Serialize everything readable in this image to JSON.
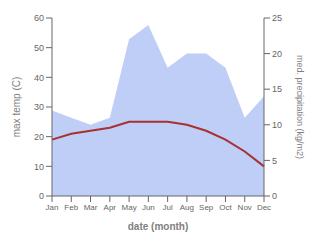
{
  "chart_data": {
    "type": "line",
    "categories": [
      "Jan",
      "Feb",
      "Mar",
      "Apr",
      "May",
      "Jun",
      "Jul",
      "Aug",
      "Sep",
      "Oct",
      "Nov",
      "Dec"
    ],
    "series": [
      {
        "type": "area",
        "axis": "y2",
        "color": "#b3c6f5",
        "values": [
          12,
          11,
          10,
          11,
          22,
          24,
          18,
          20,
          20,
          18,
          11,
          14
        ]
      },
      {
        "type": "line",
        "axis": "y",
        "color": "#a93030",
        "values": [
          19,
          21,
          22,
          23,
          25,
          25,
          25,
          24,
          22,
          19,
          15,
          10
        ]
      }
    ],
    "xlabel": "date (month)",
    "ylabel": "max temp (C)",
    "y2label": "med. precipitation (kg/m2)",
    "ylim": [
      0,
      60
    ],
    "yticks": [
      0,
      10,
      20,
      30,
      40,
      50,
      60
    ],
    "y2lim": [
      0,
      25
    ],
    "y2ticks": [
      0,
      5,
      10,
      15,
      20,
      25
    ],
    "grid": false
  }
}
